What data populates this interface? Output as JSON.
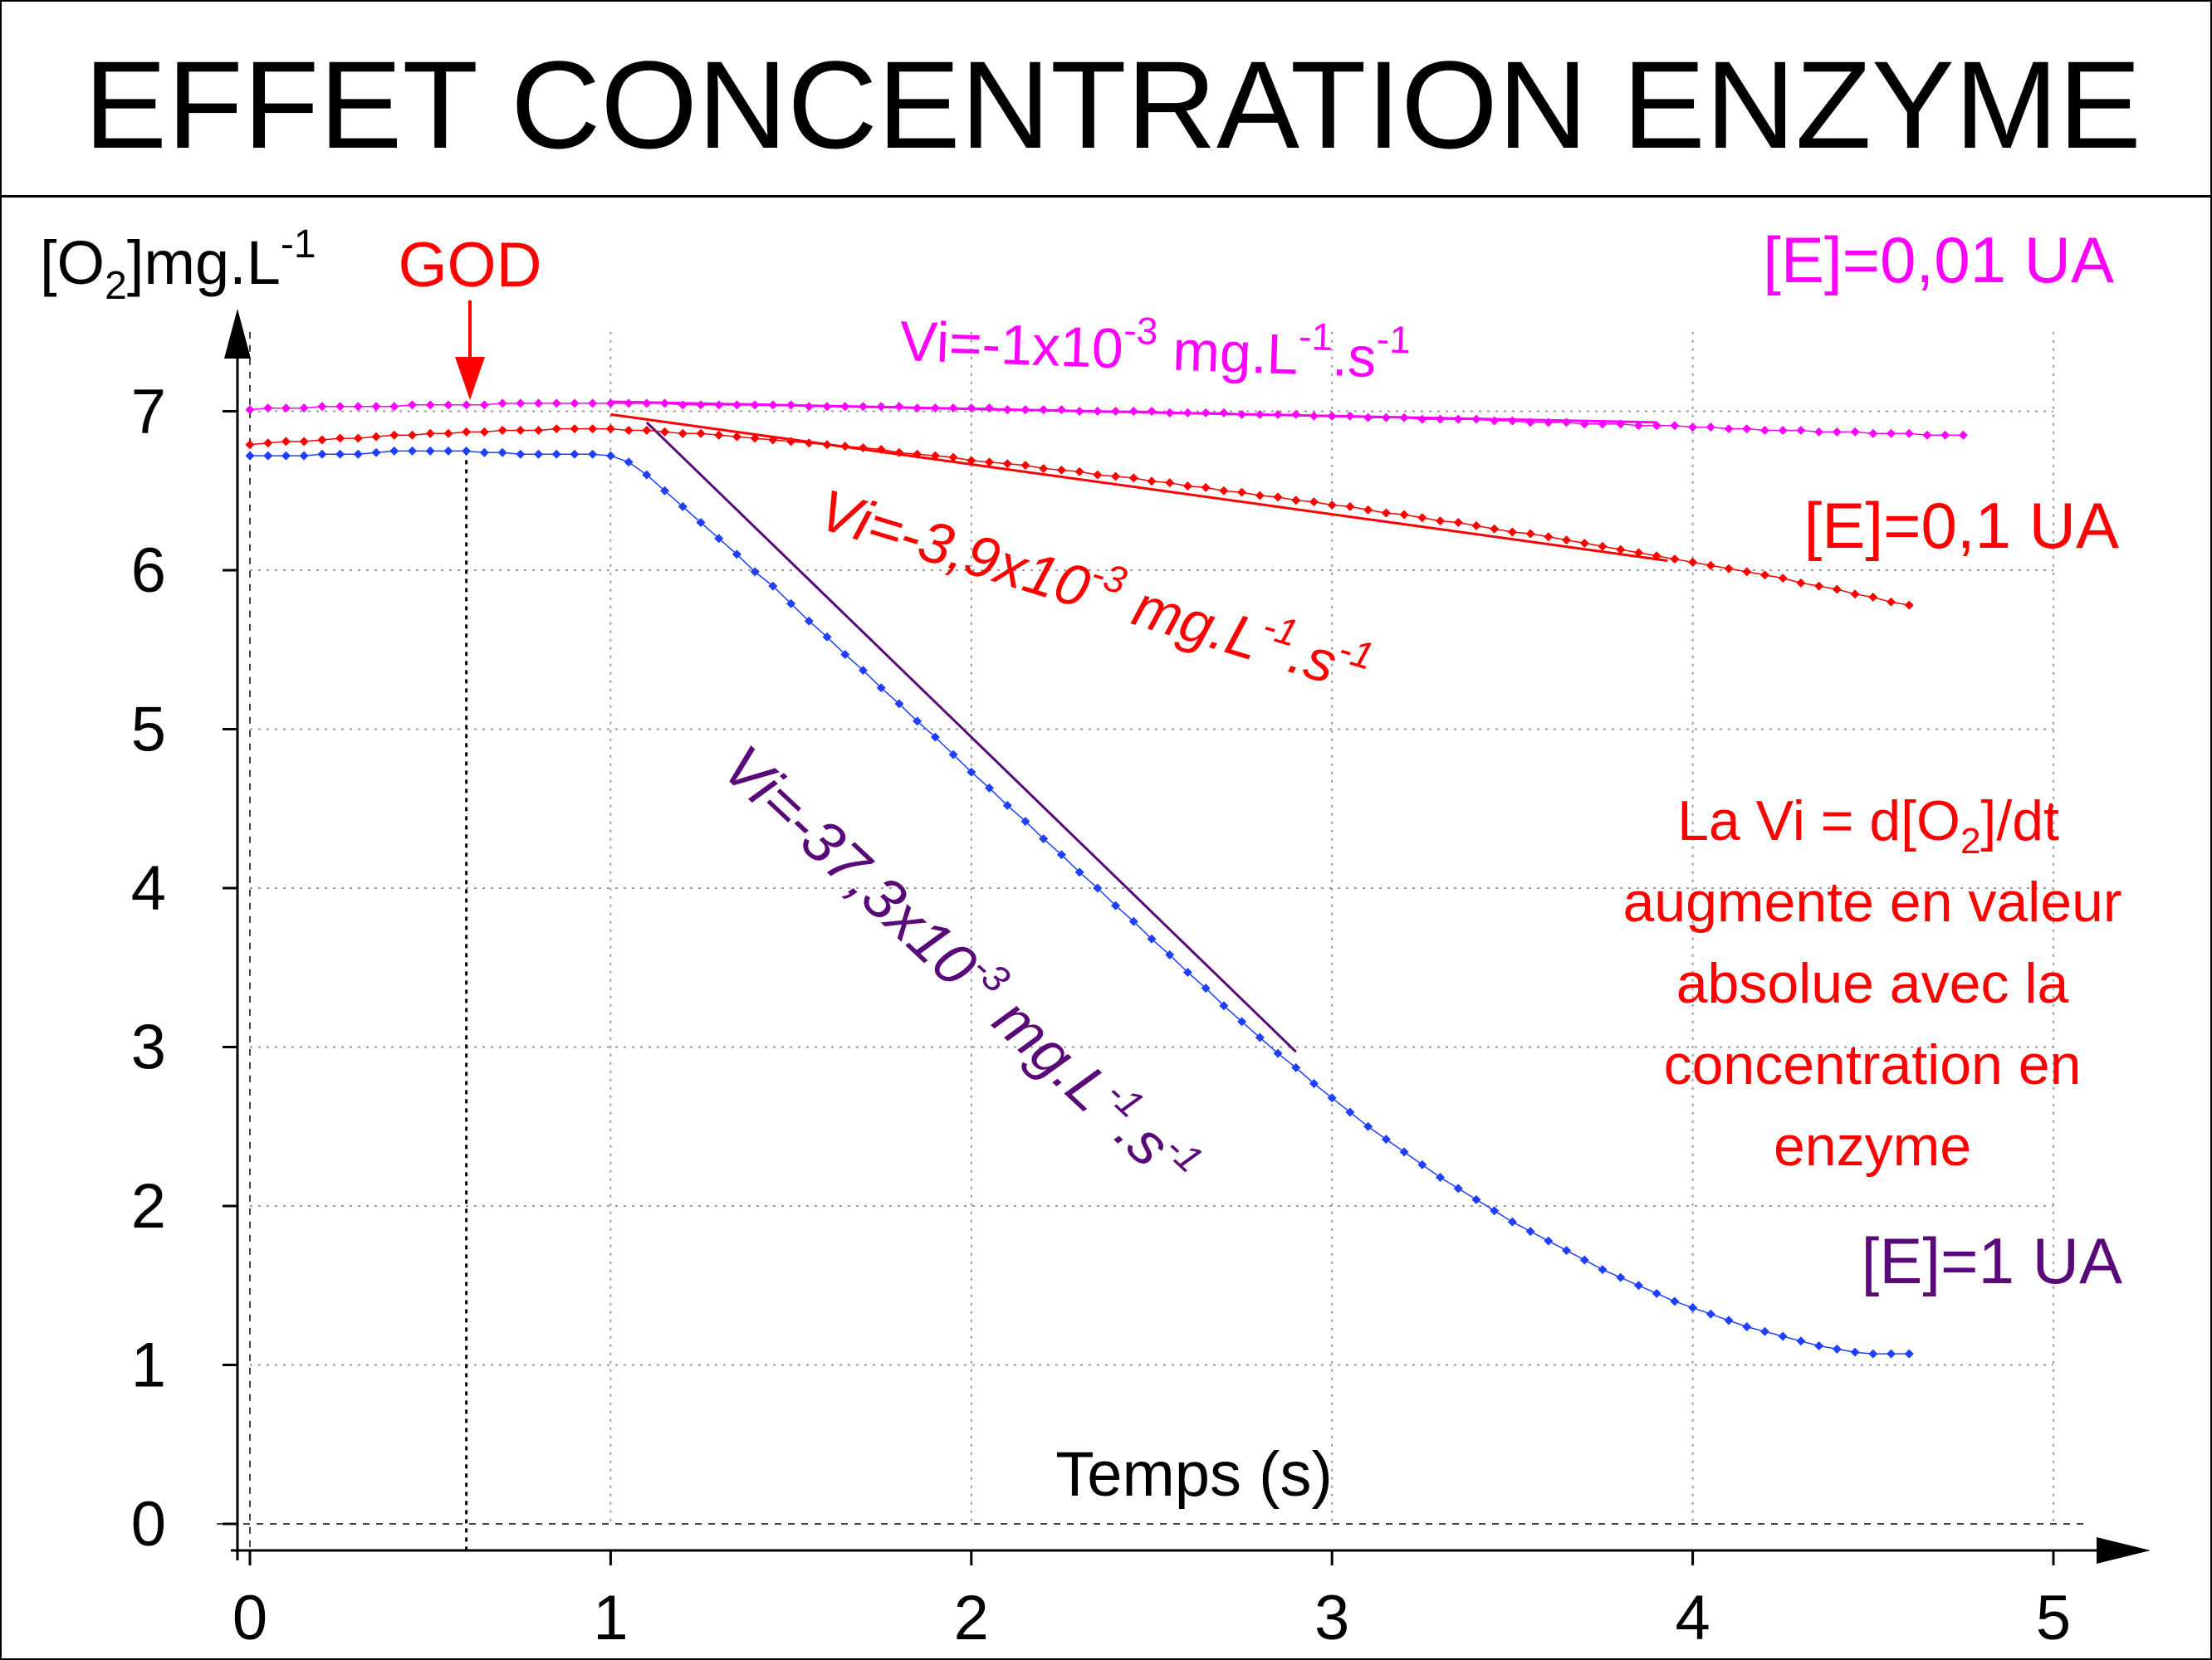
{
  "chart_data": {
    "type": "line",
    "title": "EFFET CONCENTRATION ENZYME",
    "xlabel": "Temps (s)",
    "ylabel": {
      "base": "[O",
      "sub": "2",
      "mid": "]mg.L",
      "sup": "-1"
    },
    "xlim": [
      0,
      5
    ],
    "ylim": [
      0,
      7.5
    ],
    "xticks": [
      "0",
      "1",
      "2",
      "3",
      "4",
      "5"
    ],
    "yticks": [
      "0",
      "1",
      "2",
      "3",
      "4",
      "5",
      "6",
      "7"
    ],
    "grid": true,
    "enzyme_addition": {
      "label": "GOD",
      "x": 0.6
    },
    "series": [
      {
        "name": "[E]=0,01 UA",
        "color": "#ff00ff",
        "x": [
          0,
          0.05,
          0.1,
          0.15,
          0.2,
          0.25,
          0.3,
          0.35,
          0.4,
          0.45,
          0.5,
          0.55,
          0.6,
          0.65,
          0.7,
          0.75,
          0.8,
          0.85,
          0.9,
          0.95,
          1.0,
          1.05,
          1.1,
          1.15,
          1.2,
          1.25,
          1.3,
          1.35,
          1.4,
          1.45,
          1.5,
          1.55,
          1.6,
          1.65,
          1.7,
          1.75,
          1.8,
          1.85,
          1.9,
          1.95,
          2.0,
          2.05,
          2.1,
          2.15,
          2.2,
          2.25,
          2.3,
          2.35,
          2.4,
          2.45,
          2.5,
          2.55,
          2.6,
          2.65,
          2.7,
          2.75,
          2.8,
          2.85,
          2.9,
          2.95,
          3.0,
          3.05,
          3.1,
          3.15,
          3.2,
          3.25,
          3.3,
          3.35,
          3.4,
          3.45,
          3.5,
          3.55,
          3.6,
          3.65,
          3.7,
          3.75,
          3.8,
          3.85,
          3.9,
          3.95,
          4.0,
          4.05,
          4.1,
          4.15,
          4.2,
          4.25,
          4.3,
          4.35,
          4.4,
          4.45,
          4.5,
          4.55,
          4.6,
          4.65,
          4.7,
          4.75
        ],
        "y": [
          7.01,
          7.02,
          7.02,
          7.02,
          7.03,
          7.03,
          7.03,
          7.03,
          7.03,
          7.04,
          7.04,
          7.04,
          7.04,
          7.04,
          7.05,
          7.05,
          7.05,
          7.05,
          7.05,
          7.05,
          7.05,
          7.05,
          7.05,
          7.05,
          7.04,
          7.04,
          7.04,
          7.04,
          7.04,
          7.04,
          7.04,
          7.03,
          7.03,
          7.03,
          7.03,
          7.03,
          7.03,
          7.02,
          7.02,
          7.02,
          7.02,
          7.02,
          7.01,
          7.01,
          7.01,
          7.01,
          7.0,
          7.0,
          7.0,
          7.0,
          7.0,
          6.99,
          6.99,
          6.99,
          6.99,
          6.98,
          6.98,
          6.98,
          6.98,
          6.97,
          6.97,
          6.97,
          6.96,
          6.96,
          6.96,
          6.95,
          6.95,
          6.95,
          6.95,
          6.94,
          6.94,
          6.93,
          6.93,
          6.93,
          6.92,
          6.92,
          6.92,
          6.91,
          6.91,
          6.91,
          6.9,
          6.9,
          6.89,
          6.89,
          6.88,
          6.88,
          6.88,
          6.87,
          6.87,
          6.87,
          6.86,
          6.86,
          6.86,
          6.85,
          6.85,
          6.85
        ]
      },
      {
        "name": "[E]=0,1 UA",
        "color": "#ff0000",
        "x": [
          0,
          0.05,
          0.1,
          0.15,
          0.2,
          0.25,
          0.3,
          0.35,
          0.4,
          0.45,
          0.5,
          0.55,
          0.6,
          0.65,
          0.7,
          0.75,
          0.8,
          0.85,
          0.9,
          0.95,
          1.0,
          1.05,
          1.1,
          1.15,
          1.2,
          1.25,
          1.3,
          1.35,
          1.4,
          1.45,
          1.5,
          1.55,
          1.6,
          1.65,
          1.7,
          1.75,
          1.8,
          1.85,
          1.9,
          1.95,
          2.0,
          2.05,
          2.1,
          2.15,
          2.2,
          2.25,
          2.3,
          2.35,
          2.4,
          2.45,
          2.5,
          2.55,
          2.6,
          2.65,
          2.7,
          2.75,
          2.8,
          2.85,
          2.9,
          2.95,
          3.0,
          3.05,
          3.1,
          3.15,
          3.2,
          3.25,
          3.3,
          3.35,
          3.4,
          3.45,
          3.5,
          3.55,
          3.6,
          3.65,
          3.7,
          3.75,
          3.8,
          3.85,
          3.9,
          3.95,
          4.0,
          4.05,
          4.1,
          4.15,
          4.2,
          4.25,
          4.3,
          4.35,
          4.4,
          4.45,
          4.5,
          4.55,
          4.6
        ],
        "y": [
          6.79,
          6.8,
          6.81,
          6.81,
          6.82,
          6.83,
          6.83,
          6.84,
          6.85,
          6.85,
          6.86,
          6.86,
          6.87,
          6.87,
          6.88,
          6.88,
          6.88,
          6.89,
          6.89,
          6.89,
          6.89,
          6.88,
          6.88,
          6.87,
          6.86,
          6.86,
          6.85,
          6.84,
          6.83,
          6.82,
          6.81,
          6.8,
          6.79,
          6.78,
          6.77,
          6.76,
          6.74,
          6.73,
          6.72,
          6.71,
          6.69,
          6.68,
          6.67,
          6.66,
          6.64,
          6.63,
          6.62,
          6.6,
          6.59,
          6.58,
          6.56,
          6.55,
          6.53,
          6.52,
          6.5,
          6.49,
          6.47,
          6.46,
          6.44,
          6.43,
          6.41,
          6.4,
          6.38,
          6.36,
          6.35,
          6.33,
          6.31,
          6.3,
          6.28,
          6.26,
          6.24,
          6.23,
          6.21,
          6.19,
          6.17,
          6.15,
          6.13,
          6.11,
          6.09,
          6.07,
          6.05,
          6.03,
          6.01,
          5.99,
          5.97,
          5.95,
          5.92,
          5.9,
          5.88,
          5.85,
          5.83,
          5.8,
          5.78
        ]
      },
      {
        "name": "[E]=1 UA",
        "color": "#1f3fff",
        "x": [
          0,
          0.05,
          0.1,
          0.15,
          0.2,
          0.25,
          0.3,
          0.35,
          0.4,
          0.45,
          0.5,
          0.55,
          0.6,
          0.65,
          0.7,
          0.75,
          0.8,
          0.85,
          0.9,
          0.95,
          1.0,
          1.05,
          1.1,
          1.15,
          1.2,
          1.25,
          1.3,
          1.35,
          1.4,
          1.45,
          1.5,
          1.55,
          1.6,
          1.65,
          1.7,
          1.75,
          1.8,
          1.85,
          1.9,
          1.95,
          2.0,
          2.05,
          2.1,
          2.15,
          2.2,
          2.25,
          2.3,
          2.35,
          2.4,
          2.45,
          2.5,
          2.55,
          2.6,
          2.65,
          2.7,
          2.75,
          2.8,
          2.85,
          2.9,
          2.95,
          3.0,
          3.05,
          3.1,
          3.15,
          3.2,
          3.25,
          3.3,
          3.35,
          3.4,
          3.45,
          3.5,
          3.55,
          3.6,
          3.65,
          3.7,
          3.75,
          3.8,
          3.85,
          3.9,
          3.95,
          4.0,
          4.05,
          4.1,
          4.15,
          4.2,
          4.25,
          4.3,
          4.35,
          4.4,
          4.45,
          4.5,
          4.55,
          4.6
        ],
        "y": [
          6.72,
          6.72,
          6.72,
          6.72,
          6.73,
          6.73,
          6.73,
          6.74,
          6.75,
          6.75,
          6.75,
          6.75,
          6.75,
          6.74,
          6.74,
          6.73,
          6.73,
          6.73,
          6.73,
          6.73,
          6.72,
          6.68,
          6.6,
          6.5,
          6.4,
          6.3,
          6.2,
          6.1,
          5.99,
          5.9,
          5.79,
          5.68,
          5.58,
          5.47,
          5.37,
          5.26,
          5.16,
          5.05,
          4.95,
          4.84,
          4.73,
          4.63,
          4.52,
          4.42,
          4.31,
          4.21,
          4.1,
          4.0,
          3.89,
          3.79,
          3.68,
          3.58,
          3.47,
          3.37,
          3.26,
          3.16,
          3.06,
          2.96,
          2.87,
          2.77,
          2.68,
          2.59,
          2.5,
          2.42,
          2.34,
          2.26,
          2.18,
          2.11,
          2.04,
          1.97,
          1.9,
          1.84,
          1.78,
          1.72,
          1.66,
          1.6,
          1.55,
          1.5,
          1.45,
          1.4,
          1.36,
          1.32,
          1.28,
          1.24,
          1.21,
          1.18,
          1.15,
          1.12,
          1.1,
          1.08,
          1.07,
          1.07,
          1.07
        ]
      }
    ],
    "tangents": [
      {
        "color": "#ff00ff",
        "x": [
          1.0,
          3.9
        ],
        "y": [
          7.06,
          6.93
        ]
      },
      {
        "color": "#ff0000",
        "x": [
          1.0,
          3.93
        ],
        "y": [
          6.98,
          6.06
        ]
      },
      {
        "color": "#5a0a78",
        "x": [
          1.1,
          2.9
        ],
        "y": [
          6.93,
          2.97
        ]
      }
    ],
    "annotations": [
      {
        "id": "vi-low",
        "color": "#ff00ff",
        "base": "Vi=-1x10",
        "exp": "-3",
        "mid": " mg.L",
        "exp2": "-1",
        "tail": ".s",
        "exp3": "-1",
        "italic": false
      },
      {
        "id": "vi-mid",
        "color": "#ff0000",
        "base": "Vi=-3,9x10",
        "exp": "-3",
        "mid": " mg.L",
        "exp2": "-1",
        "tail": ".s",
        "exp3": "-1",
        "italic": true
      },
      {
        "id": "vi-high",
        "color": "#5a0a78",
        "base": "Vi=-37,3x10",
        "exp": "-3",
        "mid": " mg.L",
        "exp2": "-1",
        "tail": ".s",
        "exp3": "-1",
        "italic": true
      }
    ],
    "series_labels": [
      {
        "text": "[E]=0,01 UA",
        "color": "#ff00ff"
      },
      {
        "text": "[E]=0,1 UA",
        "color": "#ff0000"
      },
      {
        "text": "[E]=1 UA",
        "color": "#5a0a78"
      }
    ],
    "note": {
      "color": "#ff0000",
      "line1_a": "La Vi = d[O",
      "line1_sub": "2",
      "line1_b": "]/dt",
      "line2": "augmente en valeur",
      "line3": "absolue avec la",
      "line4": "concentration en",
      "line5": "enzyme"
    }
  }
}
